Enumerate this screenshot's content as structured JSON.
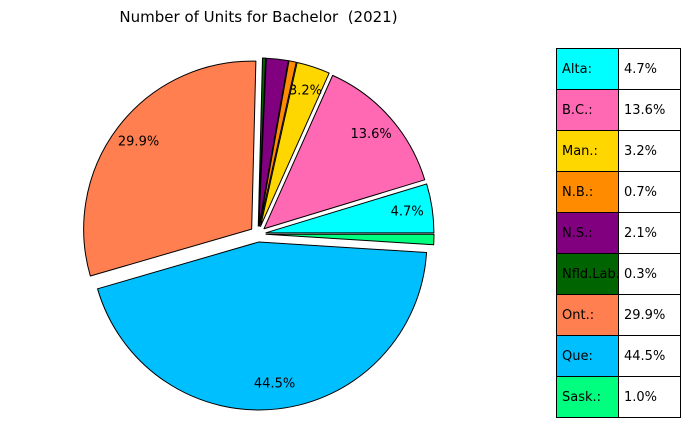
{
  "chart_data": {
    "type": "pie",
    "title": "Number of Units for Bachelor  (2021)",
    "slices": [
      {
        "label": "Alta:",
        "value": 4.7,
        "display": "4.7%",
        "color": "#00ffff",
        "show_label": true
      },
      {
        "label": "B.C.:",
        "value": 13.6,
        "display": "13.6%",
        "color": "#ff69b4",
        "show_label": true
      },
      {
        "label": "Man.:",
        "value": 3.2,
        "display": "3.2%",
        "color": "#ffd700",
        "show_label": true
      },
      {
        "label": "N.B.:",
        "value": 0.7,
        "display": "0.7%",
        "color": "#ff8c00",
        "show_label": false
      },
      {
        "label": "N.S.:",
        "value": 2.1,
        "display": "2.1%",
        "color": "#800080",
        "show_label": false
      },
      {
        "label": "Nfld.Lab.:",
        "value": 0.3,
        "display": "0.3%",
        "color": "#006400",
        "show_label": false
      },
      {
        "label": "Ont.:",
        "value": 29.9,
        "display": "29.9%",
        "color": "#ff7f50",
        "show_label": true
      },
      {
        "label": "Que:",
        "value": 44.5,
        "display": "44.5%",
        "color": "#00bfff",
        "show_label": true
      },
      {
        "label": "Sask.:",
        "value": 1.0,
        "display": "1.0%",
        "color": "#00ff7f",
        "show_label": false
      }
    ]
  }
}
